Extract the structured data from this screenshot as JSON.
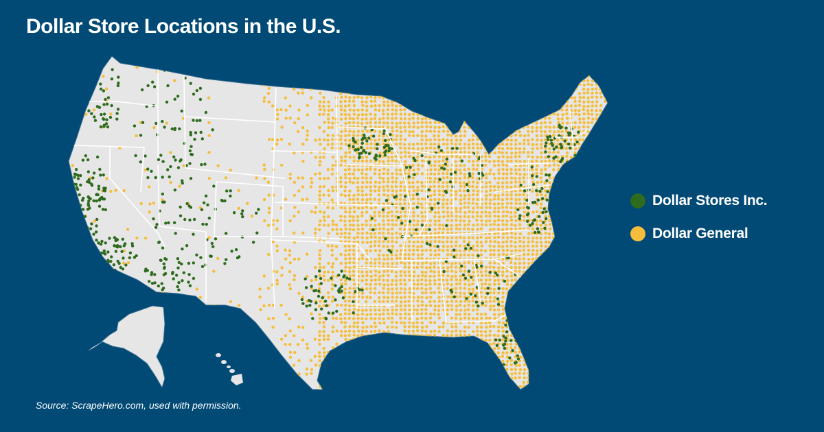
{
  "title": "Dollar Store Locations in the U.S.",
  "legend": [
    {
      "label": "Dollar Stores Inc.",
      "color": "#2e6b1e"
    },
    {
      "label": "Dollar General",
      "color": "#f5bd3b"
    }
  ],
  "source": "Source: ScrapeHero.com, used with permission.",
  "colors": {
    "background": "#004a75",
    "land": "#e6e6e6",
    "state_border": "#ffffff"
  }
}
